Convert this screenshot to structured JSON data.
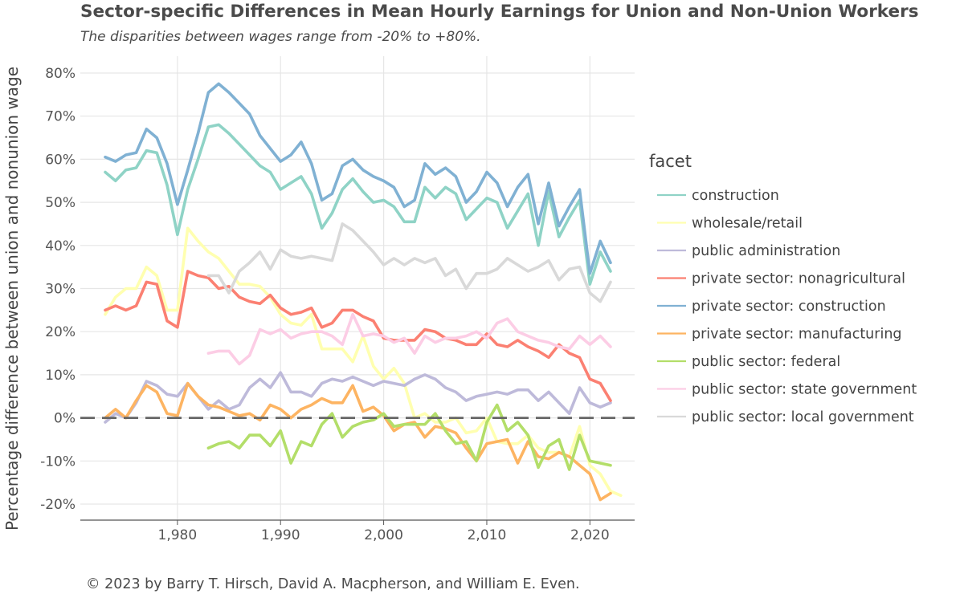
{
  "title": "Sector-specific Differences in Mean Hourly Earnings for Union and Non-Union Workers",
  "subtitle": "The disparities between wages range from -20% to +80%.",
  "caption": "© 2023 by Barry T. Hirsch, David A. Macpherson, and William E. Even.",
  "chart_data": {
    "type": "line",
    "ylabel": "Percentage difference between union and nonunion wage",
    "xlabel": "",
    "xlim": [
      1973,
      2022
    ],
    "ylim": [
      -22,
      82
    ],
    "x_ticks": [
      1980,
      1990,
      2000,
      2010,
      2020
    ],
    "x_tick_labels": [
      "1,980",
      "1,990",
      "2,000",
      "2,010",
      "2,020"
    ],
    "y_ticks": [
      -20,
      -10,
      0,
      10,
      20,
      30,
      40,
      50,
      60,
      70,
      80
    ],
    "y_tick_labels": [
      "-20%",
      "-10%",
      "0%",
      "10%",
      "20%",
      "30%",
      "40%",
      "50%",
      "60%",
      "70%",
      "80%"
    ],
    "reference_line": 0,
    "grid": true,
    "legend_title": "facet",
    "legend_position": "right",
    "series": [
      {
        "name": "construction",
        "color": "#8fd3c6",
        "start": 1973,
        "values": [
          57,
          55,
          57.5,
          58,
          62,
          61.5,
          54,
          42.5,
          53,
          60,
          67.5,
          68,
          66,
          63.5,
          61,
          58.5,
          57,
          53,
          54.5,
          56,
          52,
          44,
          47.5,
          53,
          55.5,
          52.5,
          50,
          50.5,
          49,
          45.5,
          45.5,
          53.5,
          51,
          53.5,
          52,
          46,
          48.5,
          51,
          50,
          44,
          48,
          52,
          40,
          52.5,
          42,
          46.5,
          50.5,
          31,
          38.5,
          34
        ]
      },
      {
        "name": "wholesale/retail",
        "color": "#ffffb0",
        "start": 1973,
        "values": [
          24,
          28,
          30,
          30,
          35,
          33,
          25,
          25,
          44,
          41,
          38.5,
          37,
          34,
          31,
          31,
          30.5,
          28,
          24,
          22,
          21.5,
          24,
          16,
          16,
          16,
          13,
          19,
          12,
          9,
          11.5,
          8,
          0,
          1,
          -1,
          -1,
          0,
          -3.5,
          -3,
          0,
          -5.5,
          -6,
          -6,
          -4,
          -7,
          -8,
          -8,
          -9,
          -2,
          -11,
          -13,
          -17,
          -18
        ]
      },
      {
        "name": "public administration",
        "color": "#bebada",
        "start": 1973,
        "values": [
          -1,
          1,
          0,
          3.5,
          8.5,
          7.5,
          5.5,
          5,
          8,
          5,
          2,
          4,
          2,
          3,
          7,
          9,
          7,
          10.5,
          6,
          6,
          5,
          8,
          9,
          8.5,
          9.5,
          8.5,
          7.5,
          8.5,
          8,
          7.5,
          9,
          10,
          9,
          7,
          6,
          4,
          5,
          5.5,
          6,
          5.5,
          6.5,
          6.5,
          4,
          6,
          3.5,
          1,
          7,
          3.5,
          2.5,
          3.5
        ]
      },
      {
        "name": "private sector: nonagricultural",
        "color": "#fb8072",
        "start": 1973,
        "values": [
          25,
          26,
          25,
          26,
          31.5,
          31,
          22.5,
          21,
          34,
          33,
          32.5,
          30,
          30.5,
          28,
          27,
          26.5,
          28.5,
          25.5,
          24,
          24.5,
          25.5,
          21,
          22,
          25,
          25,
          23.5,
          22.5,
          18.5,
          18,
          18,
          18,
          20.5,
          20,
          18.5,
          18,
          17,
          17,
          19.5,
          17,
          16.5,
          18,
          16.5,
          15.5,
          14,
          17,
          15,
          14,
          9,
          8,
          4
        ]
      },
      {
        "name": "private sector: construction",
        "color": "#80b1d3",
        "start": 1973,
        "values": [
          60.5,
          59.5,
          61,
          61.5,
          67,
          65,
          59,
          49.5,
          57.5,
          66,
          75.5,
          77.5,
          75.5,
          73,
          70.5,
          65.5,
          62.5,
          59.5,
          61,
          64,
          59,
          50.5,
          52,
          58.5,
          60,
          57.5,
          56,
          55,
          53.5,
          49,
          50.5,
          59,
          56.5,
          58,
          56,
          50,
          52.5,
          57,
          54.5,
          49,
          53.5,
          56.5,
          45,
          54.5,
          44.5,
          49,
          53,
          33.5,
          41,
          36
        ]
      },
      {
        "name": "private sector: manufacturing",
        "color": "#fdb462",
        "start": 1973,
        "values": [
          0,
          2,
          0,
          4,
          7.5,
          6,
          1,
          0.5,
          8,
          5,
          3,
          2.5,
          1.5,
          0.5,
          1,
          -0.5,
          3,
          2,
          0,
          2,
          3,
          4.5,
          3.5,
          3.5,
          7.5,
          1.5,
          2.5,
          0.5,
          -3,
          -1.5,
          -1,
          -4.5,
          -2,
          -2.5,
          -3.5,
          -7,
          -10,
          -6,
          -5.5,
          -5,
          -10.5,
          -5.5,
          -9,
          -9.5,
          -8,
          -9,
          -11,
          -13,
          -19,
          -17.5
        ]
      },
      {
        "name": "public sector: federal",
        "color": "#b3de69",
        "start": 1983,
        "values": [
          -7,
          -6,
          -5.5,
          -7,
          -4,
          -4,
          -6.5,
          -3,
          -10.5,
          -5.5,
          -6.5,
          -1.5,
          1,
          -4.5,
          -2,
          -1,
          -0.5,
          1,
          -2,
          -1.5,
          -1.5,
          -1.5,
          1,
          -3,
          -6,
          -5.5,
          -10,
          -1,
          3,
          -3,
          -1,
          -4,
          -11.5,
          -6.5,
          -5,
          -12,
          -4,
          -10,
          -10.5,
          -11
        ]
      },
      {
        "name": "public sector: state government",
        "color": "#fccde5",
        "start": 1983,
        "values": [
          15,
          15.5,
          15.5,
          12.5,
          14.5,
          20.5,
          19.5,
          20.5,
          18.5,
          19.5,
          20,
          20,
          19,
          17,
          24,
          19,
          19.5,
          19,
          17.5,
          18.5,
          15,
          19,
          17.5,
          18.5,
          18.5,
          19,
          20,
          18.5,
          22,
          23,
          20,
          19,
          18,
          17.5,
          16.5,
          16,
          19,
          17,
          19,
          16.5
        ]
      },
      {
        "name": "public sector: local government",
        "color": "#d9d9d9",
        "start": 1983,
        "values": [
          33,
          33,
          29,
          34,
          36,
          38.5,
          34.5,
          39,
          37.5,
          37,
          37.5,
          37,
          36.5,
          45,
          43.5,
          41,
          38.5,
          35.5,
          37,
          35.5,
          37,
          36,
          37,
          33,
          34.5,
          30,
          33.5,
          33.5,
          34.5,
          37,
          35.5,
          34,
          35,
          36.5,
          32,
          34.5,
          35,
          29,
          27,
          31.5
        ]
      }
    ]
  }
}
